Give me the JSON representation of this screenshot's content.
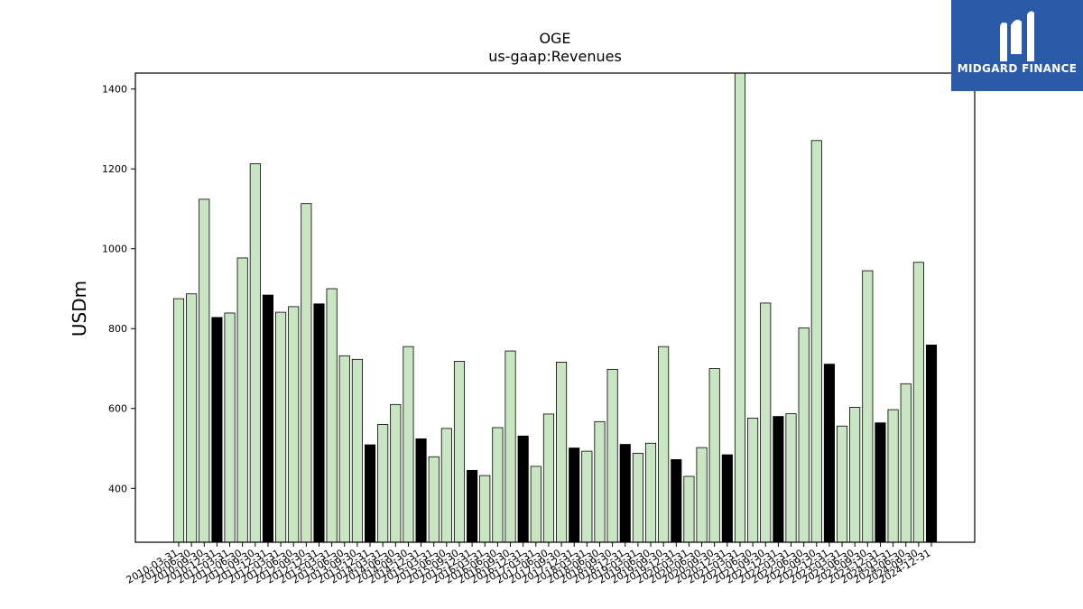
{
  "logo": {
    "text": "MIDGARD FINANCE",
    "mark_icon": "midgard-m-icon",
    "background": "#2b5aa8"
  },
  "chart_data": {
    "type": "bar",
    "title": "OGE",
    "subtitle": "us-gaap:Revenues",
    "ylabel": "USDm",
    "xlabel": "",
    "ylim": [
      265,
      1440
    ],
    "yticks": [
      400,
      600,
      800,
      1000,
      1200,
      1400
    ],
    "grid": false,
    "colors": {
      "quarter": "#c9e6c2",
      "annual": "#000000",
      "edge": "#000000"
    },
    "categories": [
      "2010-03-31",
      "2010-06-30",
      "2010-09-30",
      "2010-12-31",
      "2011-03-31",
      "2011-06-30",
      "2011-09-30",
      "2011-12-31",
      "2012-03-31",
      "2012-06-30",
      "2012-09-30",
      "2012-12-31",
      "2013-03-31",
      "2013-06-30",
      "2013-09-30",
      "2013-12-31",
      "2014-03-31",
      "2014-06-30",
      "2014-09-30",
      "2014-12-31",
      "2015-03-31",
      "2015-06-30",
      "2015-09-30",
      "2015-12-31",
      "2016-03-31",
      "2016-06-30",
      "2016-09-30",
      "2016-12-31",
      "2017-03-31",
      "2017-06-30",
      "2017-09-30",
      "2017-12-31",
      "2018-03-31",
      "2018-06-30",
      "2018-09-30",
      "2018-12-31",
      "2019-03-31",
      "2019-06-30",
      "2019-09-30",
      "2019-12-31",
      "2020-03-31",
      "2020-06-30",
      "2020-09-30",
      "2020-12-31",
      "2021-03-31",
      "2021-06-30",
      "2021-09-30",
      "2021-12-31",
      "2022-03-31",
      "2022-06-30",
      "2022-09-30",
      "2022-12-31",
      "2023-03-31",
      "2023-06-30",
      "2023-09-30",
      "2023-12-31",
      "2024-03-31",
      "2024-06-30",
      "2024-09-30",
      "2024-12-31"
    ],
    "values": [
      875,
      887,
      1124,
      828,
      839,
      977,
      1213,
      884,
      841,
      855,
      1113,
      862,
      900,
      732,
      723,
      509,
      560,
      610,
      755,
      524,
      479,
      550,
      718,
      445,
      432,
      552,
      744,
      531,
      455,
      586,
      716,
      501,
      493,
      567,
      698,
      510,
      488,
      513,
      755,
      472,
      430,
      502,
      700,
      484,
      1440,
      576,
      864,
      580,
      587,
      802,
      1271,
      711,
      556,
      603,
      945,
      564,
      597,
      662,
      966,
      759
    ],
    "annual": [
      false,
      false,
      false,
      true,
      false,
      false,
      false,
      true,
      false,
      false,
      false,
      true,
      false,
      false,
      false,
      true,
      false,
      false,
      false,
      true,
      false,
      false,
      false,
      true,
      false,
      false,
      false,
      true,
      false,
      false,
      false,
      true,
      false,
      false,
      false,
      true,
      false,
      false,
      false,
      true,
      false,
      false,
      false,
      true,
      false,
      false,
      false,
      true,
      false,
      false,
      false,
      true,
      false,
      false,
      false,
      true,
      false,
      false,
      false,
      true
    ]
  }
}
